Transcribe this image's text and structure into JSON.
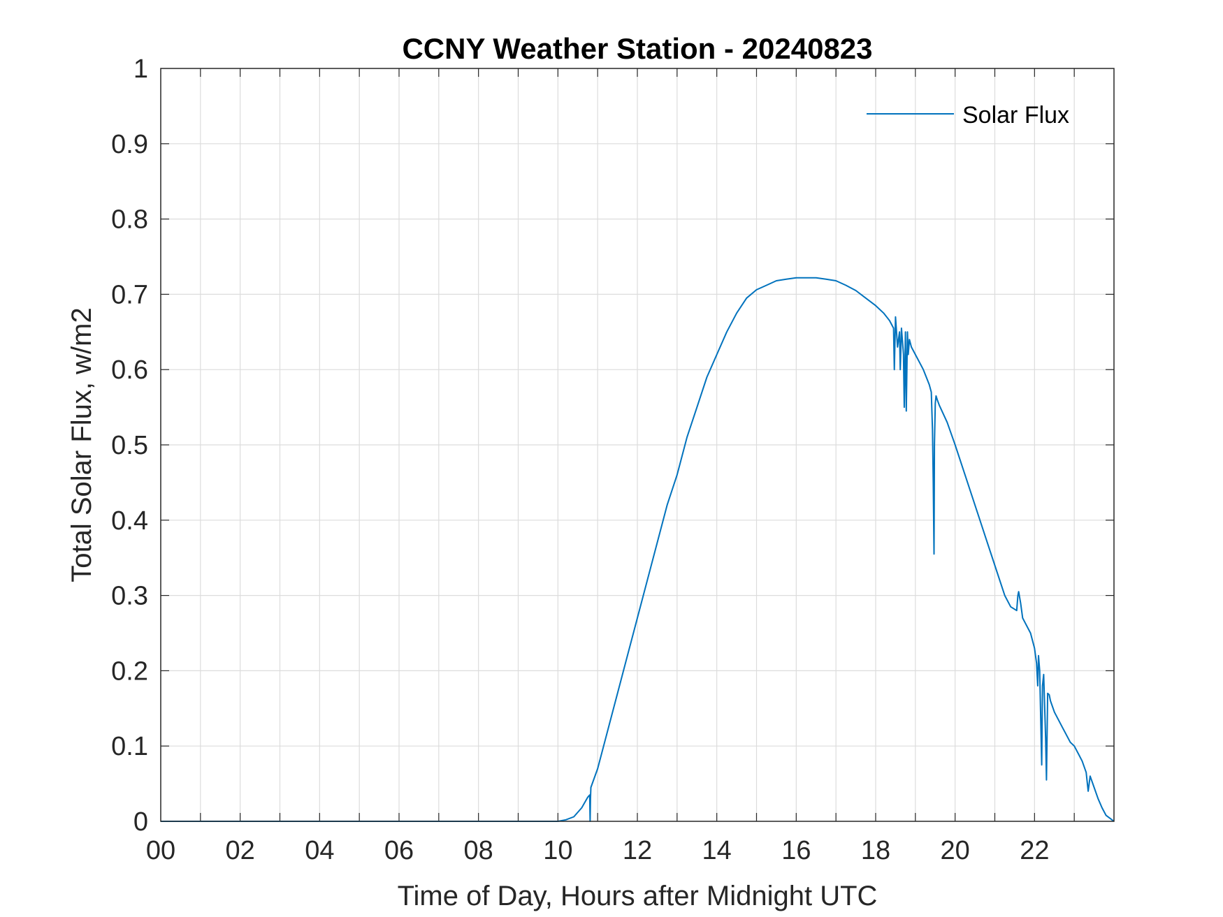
{
  "chart_data": {
    "type": "line",
    "title": "CCNY Weather Station - 20240823",
    "xlabel": "Time of Day, Hours after Midnight UTC",
    "ylabel": "Total Solar Flux, w/m2",
    "xlim": [
      0,
      24
    ],
    "ylim": [
      0,
      1
    ],
    "xticks": [
      0,
      2,
      4,
      6,
      8,
      10,
      12,
      14,
      16,
      18,
      20,
      22
    ],
    "xtick_labels": [
      "00",
      "02",
      "04",
      "06",
      "08",
      "10",
      "12",
      "14",
      "16",
      "18",
      "20",
      "22"
    ],
    "yticks": [
      0,
      0.1,
      0.2,
      0.3,
      0.4,
      0.5,
      0.6,
      0.7,
      0.8,
      0.9,
      1
    ],
    "ytick_labels": [
      "0",
      "0.1",
      "0.2",
      "0.3",
      "0.4",
      "0.5",
      "0.6",
      "0.7",
      "0.8",
      "0.9",
      "1"
    ],
    "minor_xgrid_step": 1,
    "grid": true,
    "legend": {
      "position": "top-right",
      "entries": [
        "Solar Flux"
      ]
    },
    "series": [
      {
        "name": "Solar Flux",
        "color": "#0072BD",
        "x": [
          0,
          10.0,
          10.2,
          10.4,
          10.6,
          10.75,
          10.8,
          10.81,
          10.82,
          10.83,
          11.0,
          11.25,
          11.5,
          11.75,
          12.0,
          12.25,
          12.5,
          12.75,
          13.0,
          13.25,
          13.5,
          13.75,
          14.0,
          14.25,
          14.5,
          14.75,
          15.0,
          15.25,
          15.5,
          15.75,
          16.0,
          16.25,
          16.5,
          16.75,
          17.0,
          17.25,
          17.5,
          17.75,
          18.0,
          18.2,
          18.35,
          18.45,
          18.47,
          18.5,
          18.55,
          18.6,
          18.62,
          18.65,
          18.7,
          18.72,
          18.75,
          18.77,
          18.8,
          18.82,
          18.85,
          18.9,
          19.0,
          19.2,
          19.35,
          19.4,
          19.43,
          19.45,
          19.47,
          19.48,
          19.5,
          19.52,
          19.55,
          19.6,
          19.8,
          20.0,
          20.25,
          20.5,
          20.75,
          21.0,
          21.25,
          21.4,
          21.55,
          21.58,
          21.6,
          21.65,
          21.7,
          21.9,
          22.0,
          22.05,
          22.08,
          22.1,
          22.13,
          22.18,
          22.2,
          22.23,
          22.28,
          22.3,
          22.33,
          22.37,
          22.4,
          22.5,
          22.7,
          22.9,
          23.0,
          23.1,
          23.2,
          23.3,
          23.35,
          23.4,
          23.5,
          23.6,
          23.7,
          23.8,
          23.9,
          24.0
        ],
        "values": [
          0,
          0,
          0.002,
          0.006,
          0.018,
          0.032,
          0.035,
          0.0,
          0.03,
          0.045,
          0.07,
          0.12,
          0.17,
          0.22,
          0.27,
          0.32,
          0.37,
          0.42,
          0.46,
          0.51,
          0.55,
          0.59,
          0.62,
          0.65,
          0.675,
          0.695,
          0.706,
          0.712,
          0.718,
          0.72,
          0.722,
          0.722,
          0.722,
          0.72,
          0.718,
          0.712,
          0.705,
          0.695,
          0.685,
          0.675,
          0.665,
          0.655,
          0.6,
          0.67,
          0.63,
          0.65,
          0.6,
          0.655,
          0.62,
          0.55,
          0.65,
          0.545,
          0.65,
          0.62,
          0.64,
          0.63,
          0.62,
          0.6,
          0.58,
          0.57,
          0.52,
          0.45,
          0.355,
          0.5,
          0.555,
          0.565,
          0.56,
          0.553,
          0.53,
          0.5,
          0.46,
          0.42,
          0.38,
          0.34,
          0.3,
          0.285,
          0.28,
          0.3,
          0.305,
          0.29,
          0.27,
          0.25,
          0.23,
          0.21,
          0.18,
          0.22,
          0.2,
          0.075,
          0.18,
          0.195,
          0.11,
          0.055,
          0.17,
          0.168,
          0.16,
          0.145,
          0.125,
          0.105,
          0.1,
          0.09,
          0.08,
          0.065,
          0.04,
          0.06,
          0.045,
          0.03,
          0.018,
          0.008,
          0.004,
          0.0
        ]
      }
    ]
  }
}
